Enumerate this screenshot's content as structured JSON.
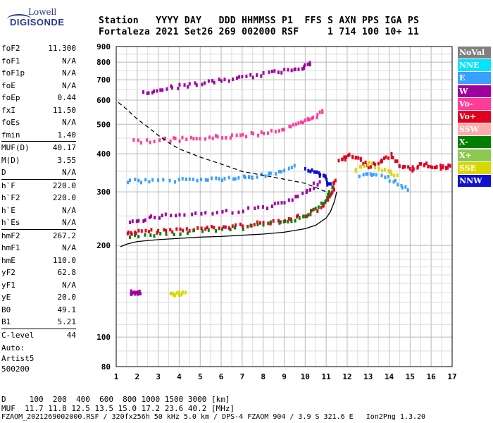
{
  "logo": {
    "line1": "Lowell",
    "line2": "DIGISONDE"
  },
  "header": {
    "line1": "Station   YYYY DAY   DDD HHMMSS P1  FFS S AXN PPS IGA PS",
    "line2": "Fortaleza 2021 Set26 269 002000 RSF     1 714 100 10+ 11"
  },
  "params": [
    [
      {
        "k": "foF2",
        "v": "11.300"
      },
      {
        "k": "foF1",
        "v": "N/A"
      },
      {
        "k": "foF1p",
        "v": "N/A"
      },
      {
        "k": "foE",
        "v": "N/A"
      },
      {
        "k": "foEp",
        "v": "0.44"
      },
      {
        "k": "fxI",
        "v": "11.50"
      },
      {
        "k": "foEs",
        "v": "N/A"
      },
      {
        "k": "fmin",
        "v": "1.40"
      }
    ],
    [
      {
        "k": "MUF(D)",
        "v": "40.17"
      },
      {
        "k": "M(D)",
        "v": "3.55"
      },
      {
        "k": "D",
        "v": "N/A"
      }
    ],
    [
      {
        "k": "h`F",
        "v": "220.0"
      },
      {
        "k": "h`F2",
        "v": "220.0"
      },
      {
        "k": "h`E",
        "v": "N/A"
      },
      {
        "k": "h`Es",
        "v": "N/A"
      }
    ],
    [
      {
        "k": "hmF2",
        "v": "267.2"
      },
      {
        "k": "hmF1",
        "v": "N/A"
      },
      {
        "k": "hmE",
        "v": "110.0"
      },
      {
        "k": "yF2",
        "v": "62.8"
      },
      {
        "k": "yF1",
        "v": "N/A"
      },
      {
        "k": "yE",
        "v": "20.0"
      },
      {
        "k": "B0",
        "v": "49.1"
      },
      {
        "k": "B1",
        "v": "5.21"
      }
    ],
    [
      {
        "k": "C-level",
        "v": "44"
      }
    ]
  ],
  "auto": {
    "l1": "Auto:",
    "l2": "Artist5",
    "l3": "500200"
  },
  "legend": [
    {
      "label": "NoVal",
      "color": "#808080"
    },
    {
      "label": "NNE",
      "color": "#00e5ff"
    },
    {
      "label": "E",
      "color": "#3aa0ff"
    },
    {
      "label": "W",
      "color": "#a000a0"
    },
    {
      "label": "Vo-",
      "color": "#ff3c9a"
    },
    {
      "label": "Vo+",
      "color": "#e00020"
    },
    {
      "label": "SSW",
      "color": "#ffaaaa"
    },
    {
      "label": "X-",
      "color": "#008000"
    },
    {
      "label": "X+",
      "color": "#8cc850"
    },
    {
      "label": "SSE",
      "color": "#d8d800"
    },
    {
      "label": "NNW",
      "color": "#1010d0"
    }
  ],
  "footer": {
    "line1": "D     100  200  400  600  800 1000 1500 3000 [km]",
    "line2": "MUF  11.7 11.8 12.5 13.5 15.0 17.2 23.6 40.2 [MHz]",
    "line3": "FZAOM_2021269002000.RSF / 320fx256h 50 kHz 5.0 km / DPS-4 FZAOM 904 / 3.9 S 321.6 E   Ion2Png 1.3.20"
  },
  "chart_data": {
    "type": "scatter",
    "xlim": [
      1,
      17
    ],
    "ylim": [
      80,
      900
    ],
    "y_scale": "log",
    "xticks": [
      1,
      2,
      3,
      4,
      5,
      6,
      7,
      8,
      9,
      10,
      11,
      12,
      13,
      14,
      15,
      16,
      17
    ],
    "yticks": [
      80,
      100,
      200,
      300,
      400,
      500,
      600,
      700,
      800,
      900
    ],
    "grid": true,
    "series": [
      {
        "color": "#e00020",
        "points": [
          [
            1.5,
            222
          ],
          [
            2,
            224
          ],
          [
            3,
            226
          ],
          [
            4,
            228
          ],
          [
            5,
            230
          ],
          [
            6,
            232
          ],
          [
            7,
            236
          ],
          [
            8,
            240
          ],
          [
            9,
            246
          ],
          [
            10,
            255
          ],
          [
            10.8,
            270
          ],
          [
            11.1,
            290
          ],
          [
            11.3,
            310
          ],
          [
            11.4,
            330
          ]
        ]
      },
      {
        "color": "#008000",
        "points": [
          [
            1.6,
            218
          ],
          [
            3,
            221
          ],
          [
            5,
            226
          ],
          [
            7,
            232
          ],
          [
            9,
            242
          ],
          [
            10,
            252
          ],
          [
            10.9,
            280
          ],
          [
            11.2,
            310
          ]
        ]
      },
      {
        "color": "#a000a0",
        "points": [
          [
            1.6,
            240
          ],
          [
            2.5,
            250
          ],
          [
            3.5,
            255
          ],
          [
            5,
            258
          ],
          [
            6.5,
            262
          ],
          [
            8,
            270
          ],
          [
            9,
            280
          ],
          [
            10,
            300
          ],
          [
            10.6,
            330
          ]
        ]
      },
      {
        "color": "#3aa0ff",
        "points": [
          [
            1.5,
            330
          ],
          [
            2.5,
            330
          ],
          [
            4,
            332
          ],
          [
            5,
            334
          ],
          [
            6,
            335
          ],
          [
            7,
            338
          ],
          [
            7.5,
            340
          ],
          [
            8.5,
            350
          ],
          [
            9.5,
            370
          ]
        ]
      },
      {
        "color": "#ff3c9a",
        "points": [
          [
            1.8,
            445
          ],
          [
            3,
            448
          ],
          [
            4,
            452
          ],
          [
            5,
            455
          ],
          [
            6,
            460
          ],
          [
            7,
            465
          ],
          [
            8,
            475
          ],
          [
            9,
            490
          ],
          [
            9.8,
            510
          ],
          [
            10.3,
            530
          ],
          [
            10.8,
            560
          ]
        ]
      },
      {
        "color": "#a000a0",
        "points": [
          [
            2.3,
            640
          ],
          [
            3,
            660
          ],
          [
            4,
            675
          ],
          [
            5,
            690
          ],
          [
            6,
            705
          ],
          [
            7,
            720
          ],
          [
            8,
            740
          ],
          [
            9,
            760
          ],
          [
            9.8,
            780
          ],
          [
            10.2,
            800
          ]
        ]
      },
      {
        "color": "#1010d0",
        "points": [
          [
            10,
            360
          ],
          [
            10.5,
            350
          ],
          [
            10.9,
            340
          ],
          [
            11.1,
            320
          ]
        ]
      },
      {
        "color": "#e00020",
        "points": [
          [
            11.6,
            380
          ],
          [
            12,
            400
          ],
          [
            12.5,
            390
          ],
          [
            13,
            370
          ],
          [
            13.5,
            380
          ],
          [
            14,
            400
          ],
          [
            14.5,
            370
          ],
          [
            15,
            360
          ],
          [
            15.5,
            375
          ],
          [
            16,
            370
          ],
          [
            16.5,
            365
          ],
          [
            16.9,
            370
          ]
        ]
      },
      {
        "color": "#3aa0ff",
        "points": [
          [
            12.6,
            340
          ],
          [
            13.2,
            350
          ],
          [
            14.2,
            330
          ],
          [
            14.8,
            310
          ]
        ]
      },
      {
        "color": "#d8d800",
        "points": [
          [
            12.3,
            360
          ],
          [
            13,
            375
          ],
          [
            13.8,
            355
          ],
          [
            14.3,
            345
          ]
        ]
      },
      {
        "color": "#a000a0",
        "points": [
          [
            1.6,
            142
          ],
          [
            1.9,
            141
          ],
          [
            2.1,
            142
          ]
        ]
      },
      {
        "color": "#d8d800",
        "points": [
          [
            3.5,
            140
          ],
          [
            3.9,
            140
          ],
          [
            4.2,
            141
          ]
        ]
      }
    ],
    "curves": [
      {
        "style": "solid",
        "points": [
          [
            1.2,
            198
          ],
          [
            1.5,
            202
          ],
          [
            2,
            206
          ],
          [
            3,
            209
          ],
          [
            4,
            211
          ],
          [
            5,
            213
          ],
          [
            6,
            214
          ],
          [
            7,
            216
          ],
          [
            8,
            218
          ],
          [
            9,
            221
          ],
          [
            10,
            227
          ],
          [
            10.5,
            233
          ],
          [
            11,
            246
          ],
          [
            11.2,
            258
          ],
          [
            11.4,
            280
          ],
          [
            11.5,
            300
          ]
        ]
      },
      {
        "style": "dashed",
        "points": [
          [
            1.1,
            590
          ],
          [
            1.5,
            560
          ],
          [
            2,
            520
          ],
          [
            2.5,
            490
          ],
          [
            3,
            460
          ],
          [
            3.5,
            435
          ],
          [
            4,
            415
          ],
          [
            5,
            390
          ],
          [
            6,
            370
          ],
          [
            7,
            350
          ],
          [
            8,
            340
          ],
          [
            9,
            330
          ],
          [
            10,
            320
          ],
          [
            10.5,
            310
          ],
          [
            11,
            300
          ]
        ]
      }
    ]
  }
}
